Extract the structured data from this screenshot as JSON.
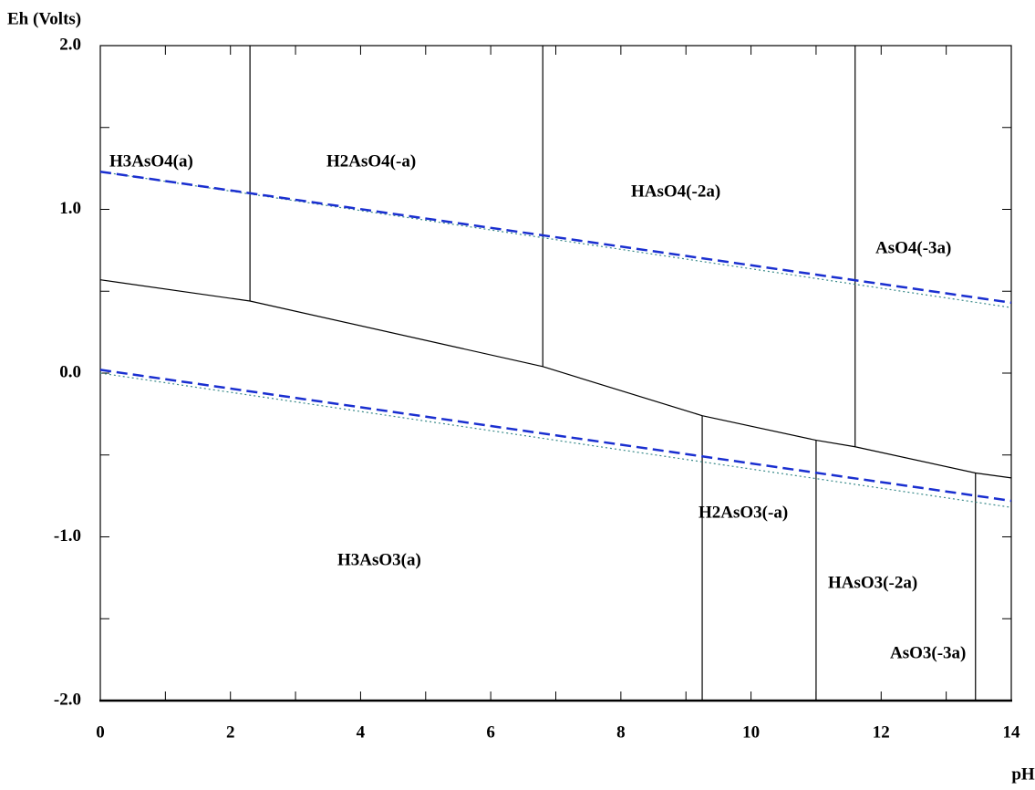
{
  "chart_data": {
    "type": "line",
    "x_label": "pH",
    "y_label": "Eh (Volts)",
    "xlim": [
      0,
      14
    ],
    "ylim": [
      -2.0,
      2.0
    ],
    "xticks": [
      0,
      2,
      4,
      6,
      8,
      10,
      12,
      14
    ],
    "xminorticks": [
      1,
      3,
      5,
      7,
      9,
      11,
      13
    ],
    "yticks": [
      {
        "value": -2,
        "label": "-2.0"
      },
      {
        "value": -1,
        "label": "-1.0"
      },
      {
        "value": 0,
        "label": "0.0"
      },
      {
        "value": 1,
        "label": "1.0"
      },
      {
        "value": 2,
        "label": "2.0"
      }
    ],
    "yminorticks": [
      -1.5,
      -0.5,
      0.5,
      1.5
    ],
    "series": [
      {
        "color": "#000000",
        "style": "solid",
        "x": [
          0,
          2.3,
          6.8,
          9.25,
          11.0,
          11.6,
          13.45,
          14
        ],
        "values": [
          0.57,
          0.44,
          0.04,
          -0.26,
          -0.41,
          -0.45,
          -0.61,
          -0.64
        ]
      },
      {
        "color": "#000000",
        "style": "solid",
        "x": [
          2.3,
          2.3
        ],
        "values": [
          2.0,
          0.44
        ]
      },
      {
        "color": "#000000",
        "style": "solid",
        "x": [
          6.8,
          6.8
        ],
        "values": [
          2.0,
          0.04
        ]
      },
      {
        "color": "#000000",
        "style": "solid",
        "x": [
          11.6,
          11.6
        ],
        "values": [
          2.0,
          -0.45
        ]
      },
      {
        "color": "#000000",
        "style": "solid",
        "x": [
          9.25,
          9.25
        ],
        "values": [
          -0.26,
          -2.0
        ]
      },
      {
        "color": "#000000",
        "style": "solid",
        "x": [
          11.0,
          11.0
        ],
        "values": [
          -0.41,
          -2.0
        ]
      },
      {
        "color": "#000000",
        "style": "solid",
        "x": [
          13.45,
          13.45
        ],
        "values": [
          -0.61,
          -2.0
        ]
      },
      {
        "color": "#3a8a8a",
        "style": "dotted",
        "x": [
          0,
          14
        ],
        "values": [
          1.23,
          0.4
        ]
      },
      {
        "color": "#3a8a8a",
        "style": "dotted",
        "x": [
          0,
          14
        ],
        "values": [
          0.0,
          -0.82
        ]
      },
      {
        "color": "#1a2fd0",
        "style": "dashed",
        "x": [
          0,
          14
        ],
        "values": [
          1.23,
          0.43
        ]
      },
      {
        "color": "#1a2fd0",
        "style": "dashed",
        "x": [
          0,
          14
        ],
        "values": [
          0.02,
          -0.78
        ]
      }
    ],
    "annotations": [
      "H3AsO4(a)",
      "H2AsO4(-a)",
      "HAsO4(-2a)",
      "AsO4(-3a)",
      "H2AsO3(-a)",
      "H3AsO3(a)",
      "HAsO3(-2a)",
      "AsO3(-3a)"
    ]
  }
}
